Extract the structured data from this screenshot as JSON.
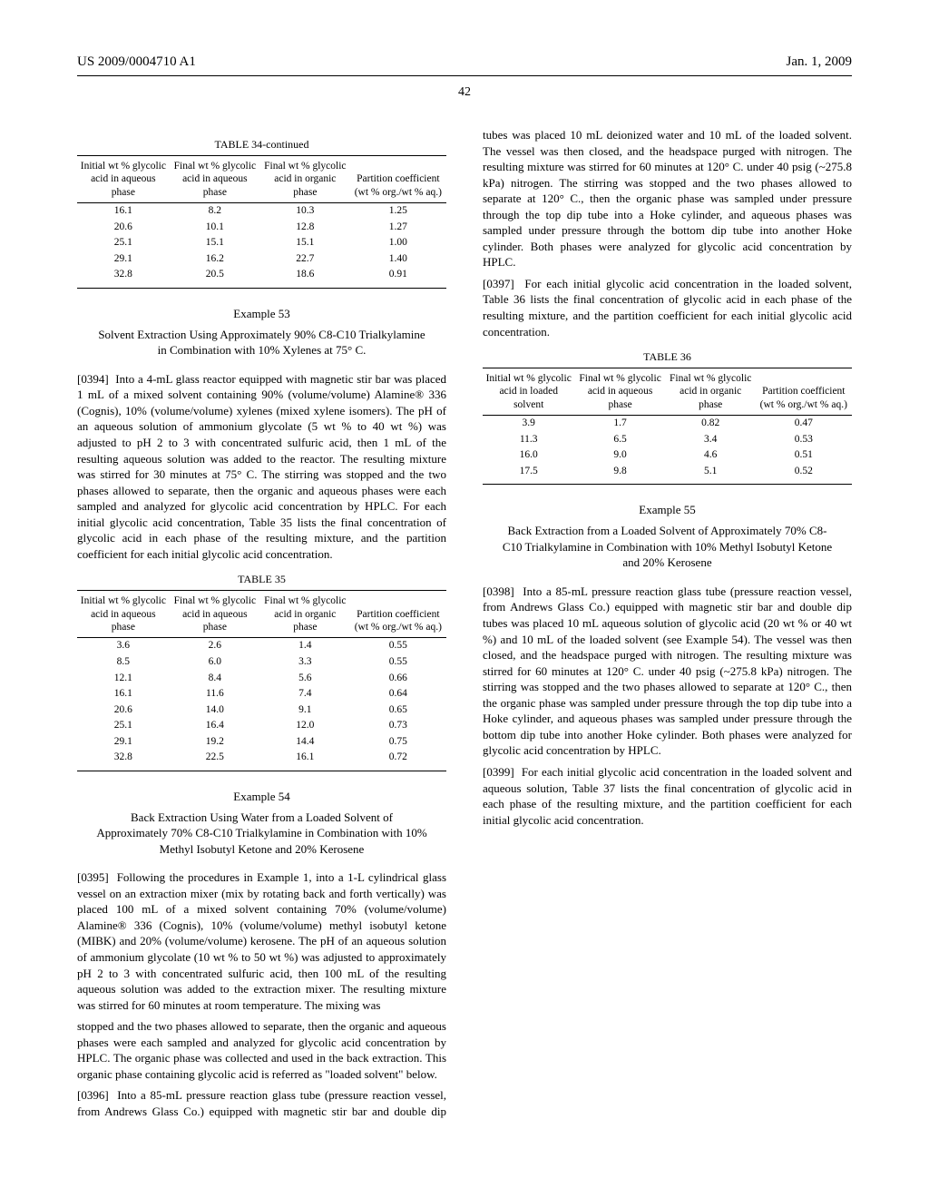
{
  "header": {
    "pub_number": "US 2009/0004710 A1",
    "pub_date": "Jan. 1, 2009"
  },
  "page_number": "42",
  "table34": {
    "caption": "TABLE 34-continued",
    "headers": [
      "Initial wt % glycolic acid in aqueous phase",
      "Final wt % glycolic acid in aqueous phase",
      "Final wt % glycolic acid in organic phase",
      "Partition coefficient (wt % org./wt % aq.)"
    ],
    "rows": [
      [
        "16.1",
        "8.2",
        "10.3",
        "1.25"
      ],
      [
        "20.6",
        "10.1",
        "12.8",
        "1.27"
      ],
      [
        "25.1",
        "15.1",
        "15.1",
        "1.00"
      ],
      [
        "29.1",
        "16.2",
        "22.7",
        "1.40"
      ],
      [
        "32.8",
        "20.5",
        "18.6",
        "0.91"
      ]
    ]
  },
  "example53": {
    "label": "Example 53",
    "title": "Solvent Extraction Using Approximately 90% C8-C10 Trialkylamine in Combination with 10% Xylenes at 75° C."
  },
  "para0394": {
    "num": "[0394]",
    "text": "Into a 4-mL glass reactor equipped with magnetic stir bar was placed 1 mL of a mixed solvent containing 90% (volume/volume) Alamine® 336 (Cognis), 10% (volume/volume) xylenes (mixed xylene isomers). The pH of an aqueous solution of ammonium glycolate (5 wt % to 40 wt %) was adjusted to pH 2 to 3 with concentrated sulfuric acid, then 1 mL of the resulting aqueous solution was added to the reactor. The resulting mixture was stirred for 30 minutes at 75° C. The stirring was stopped and the two phases allowed to separate, then the organic and aqueous phases were each sampled and analyzed for glycolic acid concentration by HPLC. For each initial glycolic acid concentration, Table 35 lists the final concentration of glycolic acid in each phase of the resulting mixture, and the partition coefficient for each initial glycolic acid concentration."
  },
  "table35": {
    "caption": "TABLE 35",
    "headers": [
      "Initial wt % glycolic acid in aqueous phase",
      "Final wt % glycolic acid in aqueous phase",
      "Final wt % glycolic acid in organic phase",
      "Partition coefficient (wt % org./wt % aq.)"
    ],
    "rows": [
      [
        "3.6",
        "2.6",
        "1.4",
        "0.55"
      ],
      [
        "8.5",
        "6.0",
        "3.3",
        "0.55"
      ],
      [
        "12.1",
        "8.4",
        "5.6",
        "0.66"
      ],
      [
        "16.1",
        "11.6",
        "7.4",
        "0.64"
      ],
      [
        "20.6",
        "14.0",
        "9.1",
        "0.65"
      ],
      [
        "25.1",
        "16.4",
        "12.0",
        "0.73"
      ],
      [
        "29.1",
        "19.2",
        "14.4",
        "0.75"
      ],
      [
        "32.8",
        "22.5",
        "16.1",
        "0.72"
      ]
    ]
  },
  "example54": {
    "label": "Example 54",
    "title": "Back Extraction Using Water from a Loaded Solvent of Approximately 70% C8-C10 Trialkylamine in Combination with 10% Methyl Isobutyl Ketone and 20% Kerosene"
  },
  "para0395": {
    "num": "[0395]",
    "text": "Following the procedures in Example 1, into a 1-L cylindrical glass vessel on an extraction mixer (mix by rotating back and forth vertically) was placed 100 mL of a mixed solvent containing 70% (volume/volume) Alamine® 336 (Cognis), 10% (volume/volume) methyl isobutyl ketone (MIBK) and 20% (volume/volume) kerosene. The pH of an aqueous solution of ammonium glycolate (10 wt % to 50 wt %) was adjusted to approximately pH 2 to 3 with concentrated sulfuric acid, then 100 mL of the resulting aqueous solution was added to the extraction mixer. The resulting mixture was stirred for 60 minutes at room temperature. The mixing was"
  },
  "para0395_cont": {
    "text": "stopped and the two phases allowed to separate, then the organic and aqueous phases were each sampled and analyzed for glycolic acid concentration by HPLC. The organic phase was collected and used in the back extraction. This organic phase containing glycolic acid is referred as \"loaded solvent\" below."
  },
  "para0396": {
    "num": "[0396]",
    "text": "Into a 85-mL pressure reaction glass tube (pressure reaction vessel, from Andrews Glass Co.) equipped with magnetic stir bar and double dip tubes was placed 10 mL deionized water and 10 mL of the loaded solvent. The vessel was then closed, and the headspace purged with nitrogen. The resulting mixture was stirred for 60 minutes at 120° C. under 40 psig (~275.8 kPa) nitrogen. The stirring was stopped and the two phases allowed to separate at 120° C., then the organic phase was sampled under pressure through the top dip tube into a Hoke cylinder, and aqueous phases was sampled under pressure through the bottom dip tube into another Hoke cylinder. Both phases were analyzed for glycolic acid concentration by HPLC."
  },
  "para0397": {
    "num": "[0397]",
    "text": "For each initial glycolic acid concentration in the loaded solvent, Table 36 lists the final concentration of glycolic acid in each phase of the resulting mixture, and the partition coefficient for each initial glycolic acid concentration."
  },
  "table36": {
    "caption": "TABLE 36",
    "headers": [
      "Initial wt % glycolic acid in loaded solvent",
      "Final wt % glycolic acid in aqueous phase",
      "Final wt % glycolic acid in organic phase",
      "Partition coefficient (wt % org./wt % aq.)"
    ],
    "rows": [
      [
        "3.9",
        "1.7",
        "0.82",
        "0.47"
      ],
      [
        "11.3",
        "6.5",
        "3.4",
        "0.53"
      ],
      [
        "16.0",
        "9.0",
        "4.6",
        "0.51"
      ],
      [
        "17.5",
        "9.8",
        "5.1",
        "0.52"
      ]
    ]
  },
  "example55": {
    "label": "Example 55",
    "title": "Back Extraction from a Loaded Solvent of Approximately 70% C8-C10 Trialkylamine in Combination with 10% Methyl Isobutyl Ketone and 20% Kerosene"
  },
  "para0398": {
    "num": "[0398]",
    "text": "Into a 85-mL pressure reaction glass tube (pressure reaction vessel, from Andrews Glass Co.) equipped with magnetic stir bar and double dip tubes was placed 10 mL aqueous solution of glycolic acid (20 wt % or 40 wt %) and 10 mL of the loaded solvent (see Example 54). The vessel was then closed, and the headspace purged with nitrogen. The resulting mixture was stirred for 60 minutes at 120° C. under 40 psig (~275.8 kPa) nitrogen. The stirring was stopped and the two phases allowed to separate at 120° C., then the organic phase was sampled under pressure through the top dip tube into a Hoke cylinder, and aqueous phases was sampled under pressure through the bottom dip tube into another Hoke cylinder. Both phases were analyzed for glycolic acid concentration by HPLC."
  },
  "para0399": {
    "num": "[0399]",
    "text": "For each initial glycolic acid concentration in the loaded solvent and aqueous solution, Table 37 lists the final concentration of glycolic acid in each phase of the resulting mixture, and the partition coefficient for each initial glycolic acid concentration."
  }
}
